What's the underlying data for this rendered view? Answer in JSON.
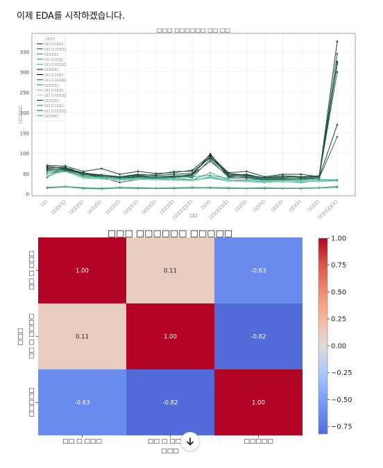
{
  "message": {
    "intro_text": "이제 EDA를 시작하겠습니다."
  },
  "scroll_button": {
    "icon": "arrow-down-icon"
  },
  "chart_data": [
    {
      "type": "line",
      "title": "□□□ □□□□□□ □□ □□",
      "xlabel": "□□",
      "ylabel": "□□□□□",
      "ylim": [
        -5,
        395
      ],
      "yticks": [
        0,
        50,
        100,
        150,
        200,
        250,
        300,
        350
      ],
      "categories": [
        "□□",
        "□□□□□",
        "□□□□□",
        "□□□□□",
        "□□□□□",
        "□□□□□",
        "□□□□□",
        "□□□□□",
        "□□□□□□□",
        "□□□",
        "□□□□□□□",
        "□□□□",
        "□□□□",
        "□□□□",
        "□□□□",
        "□□□□",
        "□□□□□□□"
      ],
      "legend_title": "□□□",
      "legend_position": "top-left",
      "grid": true,
      "series": [
        {
          "name": "□□ □ □□□",
          "color": "#1b4332",
          "values": [
            70,
            68,
            55,
            62,
            48,
            55,
            50,
            52,
            58,
            95,
            52,
            55,
            42,
            48,
            48,
            42,
            375
          ]
        },
        {
          "name": "□□ □ □□□□",
          "color": "#2d6a4f",
          "values": [
            68,
            62,
            50,
            47,
            42,
            46,
            47,
            55,
            55,
            88,
            48,
            45,
            40,
            45,
            42,
            42,
            345
          ]
        },
        {
          "name": "□□□□□",
          "color": "#40916c",
          "values": [
            15,
            18,
            14,
            13,
            16,
            15,
            14,
            15,
            16,
            15,
            15,
            14,
            15,
            14,
            14,
            15,
            18
          ]
        },
        {
          "name": "□□ □ □□□",
          "color": "#2a9d8f",
          "values": [
            40,
            70,
            45,
            40,
            35,
            40,
            38,
            38,
            35,
            40,
            32,
            30,
            28,
            30,
            28,
            32,
            32
          ]
        },
        {
          "name": "□□ □ □□□□",
          "color": "#52b788",
          "values": [
            42,
            58,
            40,
            38,
            36,
            38,
            37,
            35,
            34,
            52,
            34,
            33,
            32,
            31,
            31,
            32,
            33
          ]
        },
        {
          "name": "□□□□□",
          "color": "#1b4332",
          "values": [
            60,
            62,
            52,
            45,
            40,
            45,
            42,
            42,
            48,
            92,
            45,
            48,
            38,
            38,
            40,
            40,
            170
          ]
        },
        {
          "name": "□□ □ □□□",
          "color": "#081c15",
          "values": [
            65,
            65,
            48,
            42,
            38,
            42,
            40,
            40,
            45,
            98,
            42,
            40,
            35,
            35,
            36,
            38,
            325
          ]
        },
        {
          "name": "□□ □ □□□□",
          "color": "#2d6a4f",
          "values": [
            55,
            55,
            45,
            40,
            28,
            35,
            38,
            44,
            40,
            85,
            40,
            42,
            36,
            36,
            36,
            38,
            140
          ]
        },
        {
          "name": "□□□□□",
          "color": "#40916c",
          "values": [
            14,
            17,
            13,
            12,
            14,
            13,
            13,
            13,
            14,
            14,
            13,
            13,
            13,
            13,
            13,
            14,
            16
          ]
        },
        {
          "name": "□□ □ □□□",
          "color": "#74c69d",
          "values": [
            44,
            60,
            42,
            40,
            34,
            37,
            36,
            34,
            33,
            42,
            33,
            32,
            30,
            30,
            30,
            31,
            32
          ]
        },
        {
          "name": "□□ □ □□□□",
          "color": "#95d5b2",
          "values": [
            45,
            55,
            38,
            36,
            33,
            35,
            34,
            33,
            32,
            38,
            31,
            30,
            29,
            29,
            30,
            30,
            31
          ]
        },
        {
          "name": "□□□□□",
          "color": "#1b4332",
          "values": [
            62,
            60,
            50,
            44,
            42,
            48,
            45,
            48,
            50,
            90,
            50,
            46,
            40,
            42,
            42,
            44,
            320
          ]
        },
        {
          "name": "□□ □ □□□",
          "color": "#2a9d8f",
          "values": [
            50,
            56,
            44,
            42,
            38,
            40,
            40,
            40,
            42,
            45,
            38,
            36,
            34,
            34,
            34,
            35,
            34
          ]
        },
        {
          "name": "□□ □ □□□□",
          "color": "#2d6a4f",
          "values": [
            58,
            58,
            48,
            44,
            40,
            44,
            42,
            44,
            46,
            80,
            44,
            44,
            38,
            40,
            38,
            40,
            300
          ]
        },
        {
          "name": "□□□□□",
          "color": "#52b788",
          "values": [
            16,
            18,
            15,
            14,
            15,
            14,
            14,
            15,
            15,
            16,
            15,
            14,
            14,
            14,
            14,
            15,
            17
          ]
        }
      ]
    },
    {
      "type": "heatmap",
      "title": "□□□ □□□□□□ □□□□□",
      "xlabel": "□□□",
      "ylabel": "□□□",
      "x_categories": [
        "□□ □ □□□",
        "□□ □ □□□□",
        "□□□□□"
      ],
      "y_categories": [
        "□□ □ □□□",
        "□□ □ □□□□",
        "□□□□□"
      ],
      "values": [
        [
          1.0,
          0.11,
          -0.63
        ],
        [
          0.11,
          1.0,
          -0.82
        ],
        [
          -0.63,
          -0.82,
          1.0
        ]
      ],
      "value_labels": [
        [
          "1.00",
          "0.11",
          "-0.63"
        ],
        [
          "0.11",
          "1.00",
          "-0.82"
        ],
        [
          "-0.63",
          "-0.82",
          "1.00"
        ]
      ],
      "colormap": "coolwarm",
      "colorbar_range": [
        -0.82,
        1.0
      ],
      "colorbar_ticks": [
        1.0,
        0.75,
        0.5,
        0.25,
        0.0,
        -0.25,
        -0.5,
        -0.75
      ],
      "colorbar_tick_labels": [
        "1.00",
        "0.75",
        "0.50",
        "0.25",
        "0.00",
        "−0.25",
        "−0.50",
        "−0.75"
      ]
    }
  ]
}
